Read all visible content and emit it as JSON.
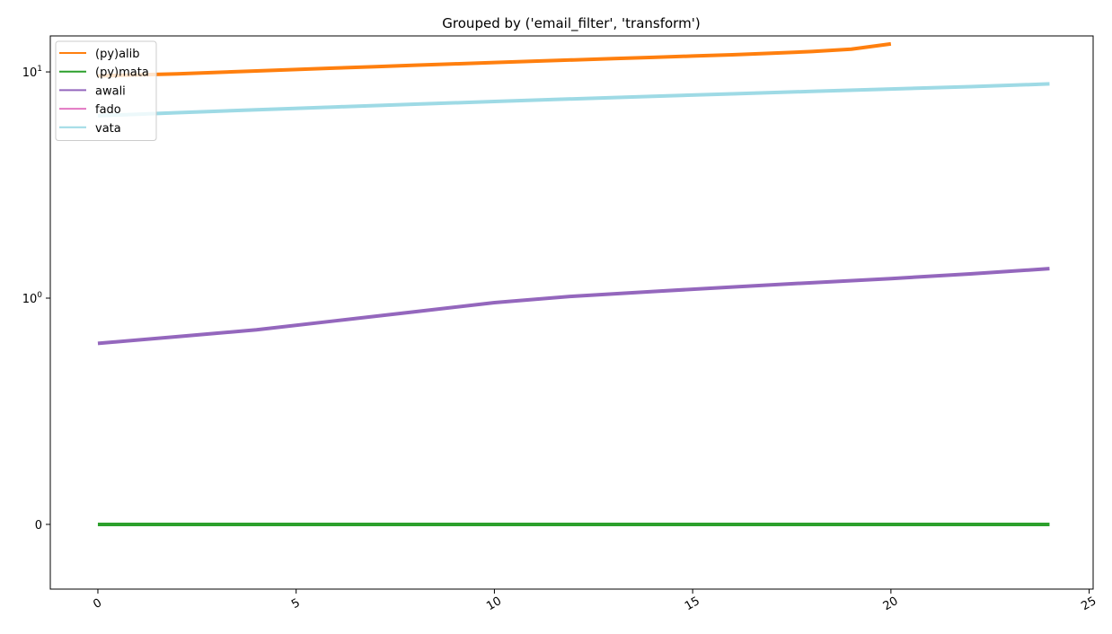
{
  "chart_data": {
    "type": "line",
    "title": "Grouped by ('email_filter', 'transform')",
    "xlabel": "",
    "ylabel": "",
    "xlim": [
      -1.2,
      25.1
    ],
    "x_ticks": [
      0,
      5,
      10,
      15,
      20,
      25
    ],
    "x_tick_rotation_deg": 30,
    "y_scale": "symlog",
    "y_tick_labels": [
      {
        "value": 0,
        "base": "0",
        "exp": ""
      },
      {
        "value": 1,
        "base": "10",
        "exp": "0"
      },
      {
        "value": 10,
        "base": "10",
        "exp": "1"
      }
    ],
    "grid": false,
    "legend_position": "top-left",
    "series": [
      {
        "name": "(py)alib",
        "color": "#ff7f0e",
        "x": [
          0,
          1,
          2,
          3,
          4,
          5,
          6,
          7,
          8,
          9,
          10,
          11,
          12,
          13,
          14,
          15,
          16,
          17,
          18,
          19,
          20
        ],
        "y": [
          9.6,
          9.7,
          9.8,
          9.95,
          10.1,
          10.25,
          10.4,
          10.55,
          10.7,
          10.85,
          11.0,
          11.15,
          11.3,
          11.45,
          11.6,
          11.75,
          11.9,
          12.1,
          12.3,
          12.6,
          13.3
        ]
      },
      {
        "name": "(py)mata",
        "color": "#2ca02c",
        "x": [
          0,
          24
        ],
        "y": [
          0,
          0
        ]
      },
      {
        "name": "awali",
        "color": "#9467bd",
        "x": [
          0,
          2,
          4,
          6,
          8,
          10,
          12,
          14,
          16,
          18,
          20,
          22,
          24
        ],
        "y": [
          0.8,
          0.83,
          0.86,
          0.9,
          0.94,
          0.98,
          1.02,
          1.07,
          1.12,
          1.17,
          1.22,
          1.28,
          1.35
        ]
      },
      {
        "name": "fado",
        "color": "#e377c2",
        "x": [],
        "y": []
      },
      {
        "name": "vata",
        "color": "#9edae5",
        "x": [
          0,
          2,
          4,
          6,
          8,
          10,
          12,
          14,
          16,
          18,
          20,
          22,
          24
        ],
        "y": [
          6.4,
          6.6,
          6.8,
          7.0,
          7.2,
          7.4,
          7.6,
          7.8,
          8.0,
          8.2,
          8.4,
          8.6,
          8.85
        ]
      }
    ]
  }
}
